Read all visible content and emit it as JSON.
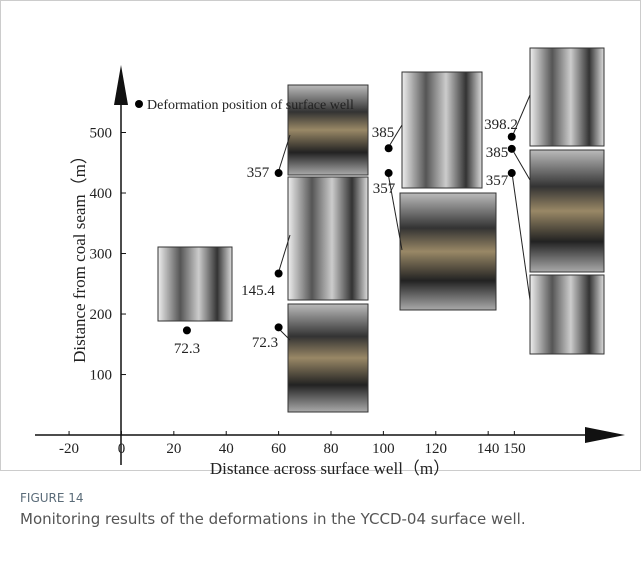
{
  "chart_data": {
    "type": "scatter",
    "xlabel": "Distance across surface well（m）",
    "ylabel": "Distance from coal seam（m）",
    "legend": "Deformation position of surface well",
    "series": [
      {
        "name": "Deformation position of surface well",
        "color": "#000000",
        "x": [
          25,
          60,
          60,
          60,
          102,
          102,
          149,
          149,
          149
        ],
        "values": [
          173,
          178,
          267,
          433,
          474,
          433,
          493,
          473,
          433
        ]
      }
    ],
    "annotations": [
      "72.3",
      "72.3",
      "145.4",
      "357",
      "385",
      "357",
      "398.2",
      "385",
      "357"
    ],
    "xlim": [
      -33,
      193
    ],
    "xticks": [
      -20,
      0,
      20,
      40,
      60,
      80,
      100,
      120,
      140,
      150
    ],
    "ylim": [
      -50,
      600
    ],
    "yticks": [
      100,
      200,
      300,
      400,
      500
    ],
    "grid": false
  },
  "caption": {
    "label": "FIGURE 14",
    "text": "Monitoring results of the deformations in the YCCD-04 surface well."
  }
}
